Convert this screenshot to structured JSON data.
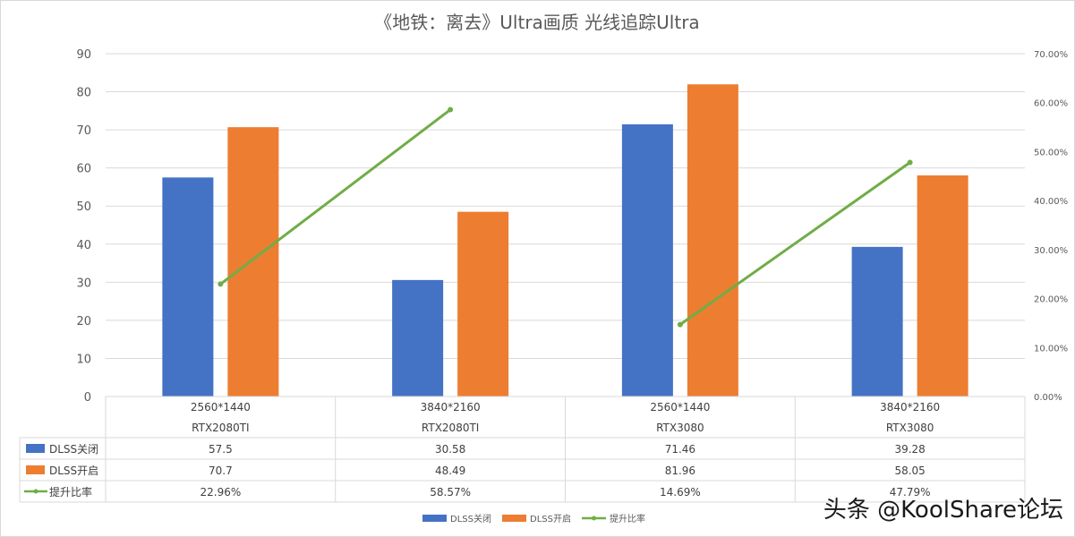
{
  "chart_data": {
    "type": "bar",
    "title": "《地铁：离去》Ultra画质 光线追踪Ultra",
    "categories": [
      {
        "resolution": "2560*1440",
        "gpu": "RTX2080TI"
      },
      {
        "resolution": "3840*2160",
        "gpu": "RTX2080TI"
      },
      {
        "resolution": "2560*1440",
        "gpu": "RTX3080"
      },
      {
        "resolution": "3840*2160",
        "gpu": "RTX3080"
      }
    ],
    "series": [
      {
        "name": "DLSS关闭",
        "type": "bar",
        "axis": "left",
        "color": "#4472c4",
        "values": [
          57.5,
          30.58,
          71.46,
          39.28
        ],
        "labels": [
          "57.5",
          "30.58",
          "71.46",
          "39.28"
        ]
      },
      {
        "name": "DLSS开启",
        "type": "bar",
        "axis": "left",
        "color": "#ed7d31",
        "values": [
          70.7,
          48.49,
          81.96,
          58.05
        ],
        "labels": [
          "70.7",
          "48.49",
          "81.96",
          "58.05"
        ]
      },
      {
        "name": "提升比率",
        "type": "line",
        "axis": "right",
        "color": "#70ad47",
        "values": [
          22.96,
          58.57,
          14.69,
          47.79
        ],
        "labels": [
          "22.96%",
          "58.57%",
          "14.69%",
          "47.79%"
        ],
        "line_segments": [
          [
            0,
            1
          ],
          [
            2,
            3
          ]
        ]
      }
    ],
    "ylim": [
      0,
      90
    ],
    "yticks": [
      "0",
      "10",
      "20",
      "30",
      "40",
      "50",
      "60",
      "70",
      "80",
      "90"
    ],
    "y2lim": [
      0,
      70
    ],
    "y2ticks": [
      "0.00%",
      "10.00%",
      "20.00%",
      "30.00%",
      "40.00%",
      "50.00%",
      "60.00%",
      "70.00%"
    ],
    "grid": true,
    "data_table": true,
    "legend_position": "bottom"
  },
  "watermark": "头条 @KoolShare论坛"
}
